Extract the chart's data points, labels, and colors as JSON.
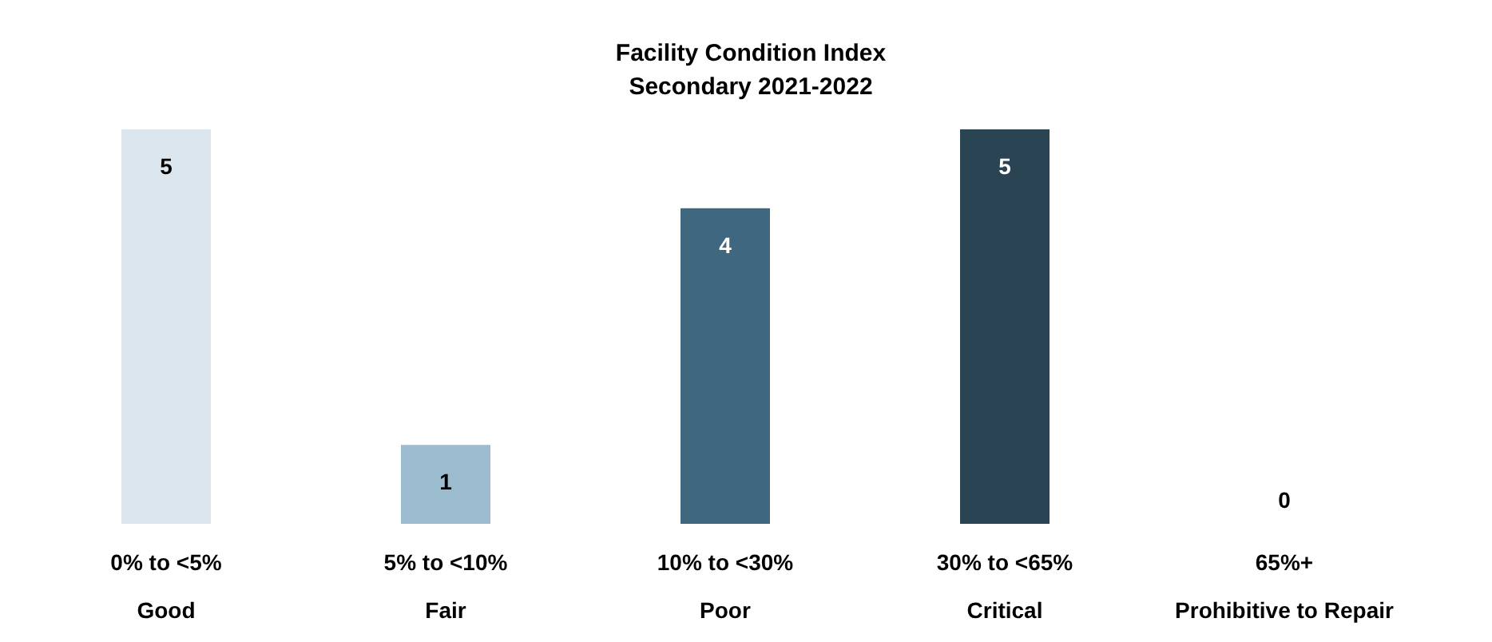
{
  "chart_data": {
    "type": "bar",
    "title": "Facility Condition Index",
    "subtitle": "Secondary 2021-2022",
    "categories": [
      "0% to <5%\nGood",
      "5% to <10%\nFair",
      "10% to <30%\nPoor",
      "30% to <65%\nCritical",
      "65%+\nProhibitive to Repair"
    ],
    "values": [
      5,
      1,
      4,
      5,
      0
    ],
    "colors": [
      "#dce6ee",
      "#9bbccf",
      "#3f6880",
      "#2a4454",
      "#2a4454"
    ],
    "data_labels": true
  }
}
